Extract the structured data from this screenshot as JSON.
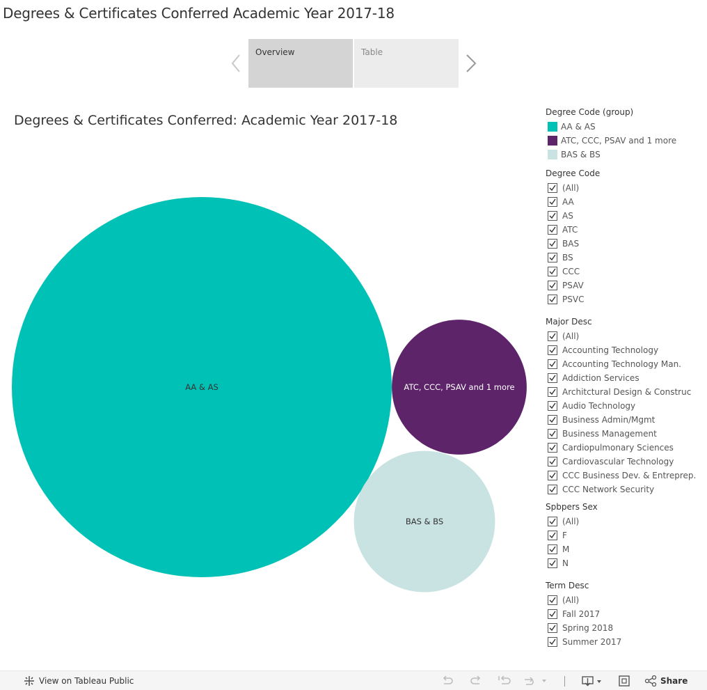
{
  "page_title": "Degrees & Certificates Conferred Academic Year 2017-18",
  "story_tabs": [
    {
      "label": "Overview",
      "active": true
    },
    {
      "label": "Table",
      "active": false
    }
  ],
  "viz_title": "Degrees & Certificates Conferred: Academic Year 2017-18",
  "chart_data": {
    "type": "bubble",
    "title": "Degrees & Certificates Conferred: Academic Year 2017-18",
    "series": [
      {
        "name": "AA & AS",
        "label": "AA & AS",
        "relative_size": 1.0,
        "color": "#00c1b5"
      },
      {
        "name": "ATC, CCC, PSAV and 1 more",
        "label": "ATC, CCC, PSAV and 1 more",
        "relative_size": 0.126,
        "color": "#5d246a"
      },
      {
        "name": "BAS & BS",
        "label": "BAS & BS",
        "relative_size": 0.138,
        "color": "#c8e3e1"
      }
    ]
  },
  "legend": {
    "title": "Degree Code (group)",
    "items": [
      {
        "label": "AA & AS",
        "color": "#00c1b5"
      },
      {
        "label": "ATC, CCC, PSAV and 1 more",
        "color": "#5d246a"
      },
      {
        "label": "BAS & BS",
        "color": "#c8e3e1"
      }
    ]
  },
  "filters": [
    {
      "title": "Degree Code",
      "items": [
        "(All)",
        "AA",
        "AS",
        "ATC",
        "BAS",
        "BS",
        "CCC",
        "PSAV",
        "PSVC"
      ]
    },
    {
      "title": "Major Desc",
      "items": [
        "(All)",
        "Accounting Technology",
        "Accounting Technology Man.",
        "Addiction Services",
        "Architctural Design & Construc",
        "Audio Technology",
        "Business Admin/Mgmt",
        "Business Management",
        "Cardiopulmonary Sciences",
        "Cardiovascular Technology",
        "CCC Business Dev. & Entreprep.",
        "CCC Network Security"
      ]
    },
    {
      "title": "Spbpers Sex",
      "items": [
        "(All)",
        "F",
        "M",
        "N"
      ]
    },
    {
      "title": "Term Desc",
      "items": [
        "(All)",
        "Fall 2017",
        "Spring 2018",
        "Summer 2017"
      ]
    }
  ],
  "toolbar": {
    "view_label": "View on Tableau Public",
    "share_label": "Share"
  }
}
